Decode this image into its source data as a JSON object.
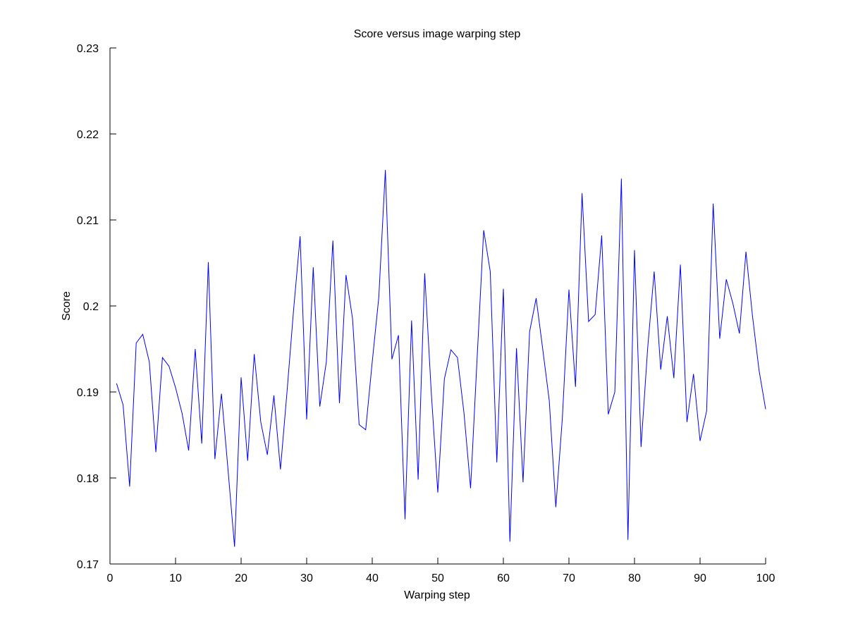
{
  "chart_data": {
    "type": "line",
    "title": "Score versus image warping step",
    "xlabel": "Warping step",
    "ylabel": "Score",
    "xlim": [
      0,
      100
    ],
    "ylim": [
      0.17,
      0.23
    ],
    "xticks": [
      "0",
      "10",
      "20",
      "30",
      "40",
      "50",
      "60",
      "70",
      "80",
      "90",
      "100"
    ],
    "yticks": [
      "0.17",
      "0.18",
      "0.19",
      "0.2",
      "0.21",
      "0.22",
      "0.23"
    ],
    "grid": false,
    "line_color": "#0000ff",
    "series": [
      {
        "name": "Score",
        "x": [
          1,
          2,
          3,
          4,
          5,
          6,
          7,
          8,
          9,
          10,
          11,
          12,
          13,
          14,
          15,
          16,
          17,
          18,
          19,
          20,
          21,
          22,
          23,
          24,
          25,
          26,
          27,
          28,
          29,
          30,
          31,
          32,
          33,
          34,
          35,
          36,
          37,
          38,
          39,
          40,
          41,
          42,
          43,
          44,
          45,
          46,
          47,
          48,
          49,
          50,
          51,
          52,
          53,
          54,
          55,
          56,
          57,
          58,
          59,
          60,
          61,
          62,
          63,
          64,
          65,
          66,
          67,
          68,
          69,
          70,
          71,
          72,
          73,
          74,
          75,
          76,
          77,
          78,
          79,
          80,
          81,
          82,
          83,
          84,
          85,
          86,
          87,
          88,
          89,
          90,
          91,
          92,
          93,
          94,
          95,
          96,
          97,
          98,
          99,
          100
        ],
        "values": [
          0.191,
          0.1885,
          0.179,
          0.1957,
          0.1967,
          0.1935,
          0.183,
          0.194,
          0.193,
          0.1905,
          0.1875,
          0.1832,
          0.195,
          0.184,
          0.2051,
          0.1822,
          0.1898,
          0.181,
          0.172,
          0.1917,
          0.182,
          0.1944,
          0.1865,
          0.1827,
          0.1896,
          0.181,
          0.19,
          0.1995,
          0.2081,
          0.1868,
          0.2045,
          0.1883,
          0.1935,
          0.2076,
          0.1887,
          0.2036,
          0.1985,
          0.1862,
          0.1856,
          0.1935,
          0.201,
          0.2158,
          0.1938,
          0.1966,
          0.1752,
          0.1983,
          0.1798,
          0.2038,
          0.19,
          0.1783,
          0.1915,
          0.1949,
          0.194,
          0.1875,
          0.1788,
          0.194,
          0.2088,
          0.204,
          0.1818,
          0.202,
          0.1726,
          0.1951,
          0.1795,
          0.197,
          0.2009,
          0.195,
          0.189,
          0.1766,
          0.187,
          0.2019,
          0.1906,
          0.2131,
          0.1982,
          0.199,
          0.2082,
          0.1874,
          0.19,
          0.2148,
          0.1728,
          0.2065,
          0.1836,
          0.195,
          0.204,
          0.1926,
          0.1988,
          0.1916,
          0.2048,
          0.1865,
          0.1921,
          0.1843,
          0.1878,
          0.2119,
          0.1962,
          0.2031,
          0.2003,
          0.1968,
          0.2063,
          0.1988,
          0.1925,
          0.188
        ]
      }
    ]
  }
}
